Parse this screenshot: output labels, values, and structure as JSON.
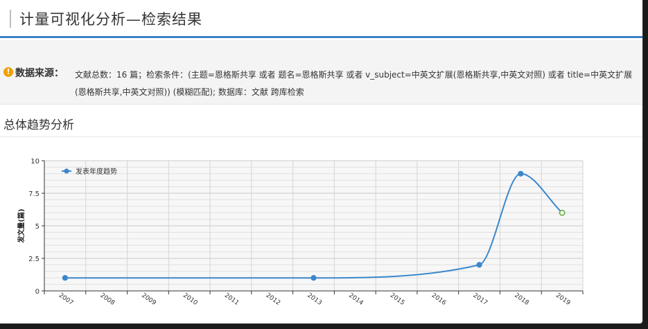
{
  "header": {
    "title": "计量可视化分析—检索结果"
  },
  "source": {
    "label": "数据来源：",
    "text": "文献总数：16 篇；检索条件：(主题=恩格斯共享 或者 题名=恩格斯共享 或者 v_subject=中英文扩展(恩格斯共享,中英文对照) 或者 title=中英文扩展(恩格斯共享,中英文对照)) (模糊匹配); 数据库：文献 跨库检索"
  },
  "section": {
    "title": "总体趋势分析"
  },
  "colors": {
    "accent": "#3b82c4",
    "series": "#3a87cc",
    "forecast": "#6ab04c",
    "warning": "#f0a000"
  },
  "chart_data": {
    "type": "line",
    "categories": [
      "2007",
      "2008",
      "2009",
      "2010",
      "2011",
      "2012",
      "2013",
      "2014",
      "2015",
      "2016",
      "2017",
      "2018",
      "2019"
    ],
    "series": [
      {
        "name": "发表年度趋势",
        "x": [
          "2007",
          "2013",
          "2017",
          "2018",
          "2019"
        ],
        "values": [
          1,
          1,
          2,
          9,
          6
        ]
      }
    ],
    "forecast_point": {
      "x": "2019",
      "value": 6
    },
    "ylabel": "发文量(篇)",
    "xlabel": "",
    "ylim": [
      0,
      10
    ],
    "yticks": [
      "0",
      "2.5",
      "5",
      "7.5",
      "10"
    ],
    "grid": true,
    "legend": "top-left"
  }
}
